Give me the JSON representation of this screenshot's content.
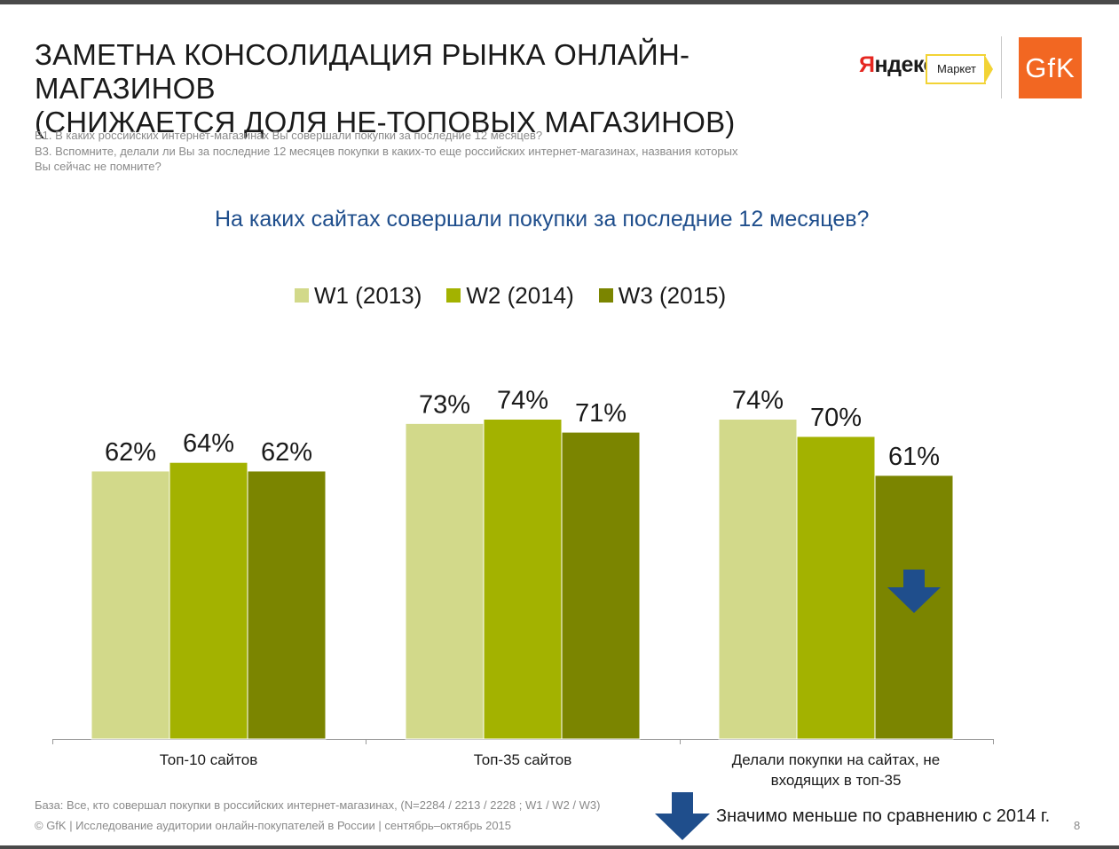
{
  "title_line1": "ЗАМЕТНА КОНСОЛИДАЦИЯ РЫНКА ОНЛАЙН-МАГАЗИНОВ",
  "title_line2": "(СНИЖАЕТСЯ ДОЛЯ НЕ-ТОПОВЫХ МАГАЗИНОВ)",
  "questions": [
    "В1. В каких российских интернет-магазинах Вы совершали покупки за последние 12 месяцев?",
    "В3. Вспомните, делали ли Вы за последние 12 месяцев покупки в каких-то еще российских интернет-магазинах, названия которых",
    "Вы сейчас не помните?"
  ],
  "logos": {
    "yandex_first": "Я",
    "yandex_rest": "ндекс",
    "market": "Маркет",
    "gfk": "GfK"
  },
  "footnote_base": "База: Все, кто совершал покупки в российских интернет-магазинах, (N=2284 / 2213 / 2228 ; W1 / W2 / W3)",
  "footnote_copyright": "© GfK | Исследование аудитории онлайн-покупателей в России | сентябрь–октябрь 2015",
  "significance_note": "Значимо меньше по сравнению с 2014 г.",
  "page_number": "8",
  "colors": {
    "w1": "#d2d98a",
    "w2": "#a3b200",
    "w3": "#7b8500",
    "arrow": "#1f4e8c",
    "subtitle": "#1f4e8c"
  },
  "chart_data": {
    "type": "bar",
    "title": "На каких сайтах совершали покупки за последние 12 месяцев?",
    "categories": [
      [
        "Топ-10 сайтов"
      ],
      [
        "Топ-35 сайтов"
      ],
      [
        "Делали покупки на сайтах, не",
        "входящих в топ-35"
      ]
    ],
    "series": [
      {
        "name": "W1 (2013)",
        "values": [
          62,
          73,
          74
        ],
        "labels": [
          "62%",
          "73%",
          "74%"
        ]
      },
      {
        "name": "W2 (2014)",
        "values": [
          64,
          74,
          70
        ],
        "labels": [
          "64%",
          "74%",
          "70%"
        ]
      },
      {
        "name": "W3 (2015)",
        "values": [
          62,
          71,
          61
        ],
        "labels": [
          "62%",
          "71%",
          "61%"
        ]
      }
    ],
    "significant_decrease": [
      {
        "category_index": 2,
        "series_index": 2
      }
    ],
    "ylim": [
      0,
      100
    ],
    "grid": false,
    "legend_position": "top"
  }
}
